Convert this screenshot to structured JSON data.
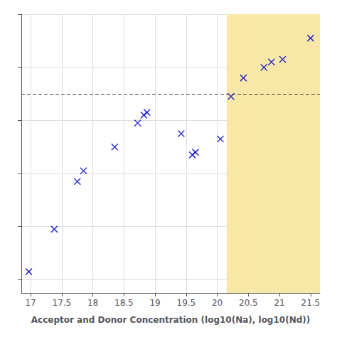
{
  "chart_data": {
    "type": "scatter",
    "xlabel": "Acceptor and Donor Concentration (log10(Na), log10(Nd))",
    "x": [
      16.97,
      17.38,
      17.75,
      17.85,
      18.35,
      18.72,
      18.82,
      18.87,
      19.42,
      19.6,
      19.65,
      20.05,
      20.22,
      20.42,
      20.75,
      20.87,
      21.05,
      21.5
    ],
    "values": [
      0.03,
      0.19,
      0.37,
      0.41,
      0.5,
      0.59,
      0.62,
      0.63,
      0.55,
      0.47,
      0.48,
      0.53,
      0.69,
      0.76,
      0.8,
      0.82,
      0.83,
      0.91
    ],
    "color": "#0000cc",
    "marker": "x",
    "dashed_line_y": 0.7,
    "dashed_line_color": "#444444",
    "shaded_x": [
      20.15,
      21.65
    ],
    "shaded_color": "#f7e8a8",
    "xlim": [
      16.85,
      21.65
    ],
    "ylim": [
      -0.05,
      1.0
    ],
    "xticks": [
      17,
      17.5,
      18,
      18.5,
      19,
      19.5,
      20,
      20.5,
      21,
      21.5
    ],
    "yticks": [
      0,
      0.2,
      0.4,
      0.6,
      0.8,
      1.0
    ],
    "tick_labels": "x",
    "grid": true
  }
}
